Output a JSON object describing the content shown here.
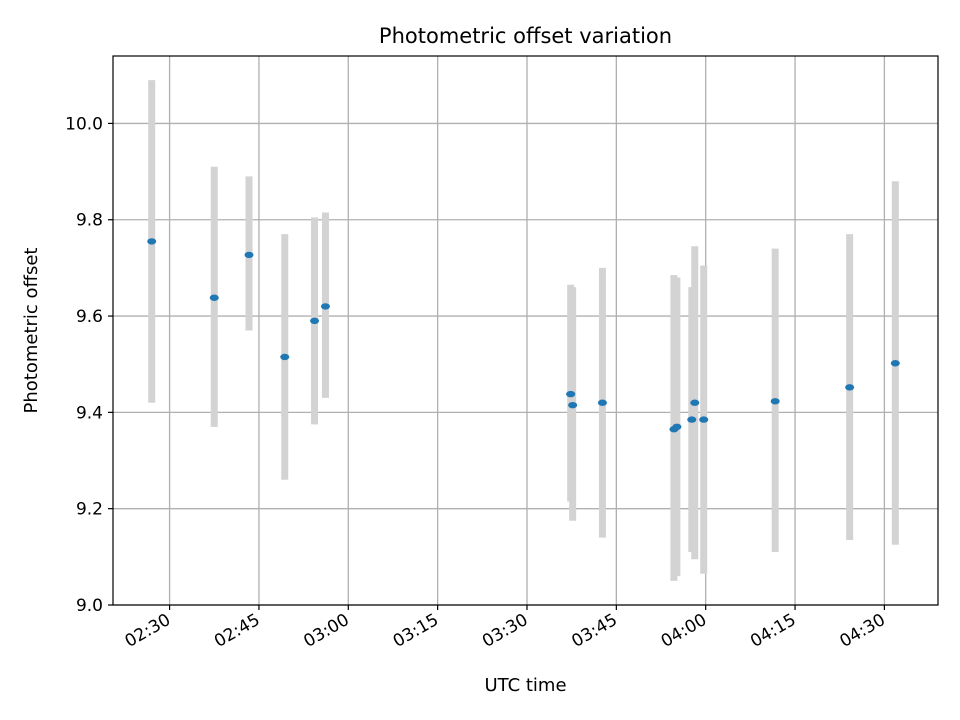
{
  "chart_data": {
    "type": "scatter",
    "title": "Photometric offset variation",
    "xlabel": "UTC time",
    "ylabel": "Photometric offset",
    "xlim": [
      "02:20:30",
      "04:39:00"
    ],
    "ylim": [
      9.0,
      10.14
    ],
    "x_ticks": [
      "02:30",
      "02:45",
      "03:00",
      "03:15",
      "03:30",
      "03:45",
      "04:00",
      "04:15",
      "04:30"
    ],
    "y_ticks": [
      9.0,
      9.2,
      9.4,
      9.6,
      9.8,
      10.0
    ],
    "grid": true,
    "colors": {
      "point": "#1f77b4",
      "errorbar": "#d3d3d3",
      "grid": "#b0b0b0"
    },
    "points": [
      {
        "x": "02:27:00",
        "y": 9.755,
        "y_err_low": 9.42,
        "y_err_high": 10.09
      },
      {
        "x": "02:37:30",
        "y": 9.638,
        "y_err_low": 9.37,
        "y_err_high": 9.91
      },
      {
        "x": "02:43:20",
        "y": 9.727,
        "y_err_low": 9.57,
        "y_err_high": 9.89
      },
      {
        "x": "02:49:20",
        "y": 9.515,
        "y_err_low": 9.26,
        "y_err_high": 9.77
      },
      {
        "x": "02:54:20",
        "y": 9.59,
        "y_err_low": 9.375,
        "y_err_high": 9.805
      },
      {
        "x": "02:56:10",
        "y": 9.62,
        "y_err_low": 9.43,
        "y_err_high": 9.815
      },
      {
        "x": "03:37:20",
        "y": 9.438,
        "y_err_low": 9.215,
        "y_err_high": 9.665
      },
      {
        "x": "03:37:40",
        "y": 9.415,
        "y_err_low": 9.175,
        "y_err_high": 9.66
      },
      {
        "x": "03:42:40",
        "y": 9.42,
        "y_err_low": 9.14,
        "y_err_high": 9.7
      },
      {
        "x": "03:54:40",
        "y": 9.365,
        "y_err_low": 9.05,
        "y_err_high": 9.685
      },
      {
        "x": "03:55:10",
        "y": 9.37,
        "y_err_low": 9.06,
        "y_err_high": 9.68
      },
      {
        "x": "03:57:40",
        "y": 9.385,
        "y_err_low": 9.11,
        "y_err_high": 9.66
      },
      {
        "x": "03:58:10",
        "y": 9.42,
        "y_err_low": 9.095,
        "y_err_high": 9.745
      },
      {
        "x": "03:59:40",
        "y": 9.385,
        "y_err_low": 9.065,
        "y_err_high": 9.705
      },
      {
        "x": "04:11:40",
        "y": 9.423,
        "y_err_low": 9.11,
        "y_err_high": 9.74
      },
      {
        "x": "04:24:10",
        "y": 9.452,
        "y_err_low": 9.135,
        "y_err_high": 9.77
      },
      {
        "x": "04:31:50",
        "y": 9.502,
        "y_err_low": 9.125,
        "y_err_high": 9.88
      }
    ]
  }
}
